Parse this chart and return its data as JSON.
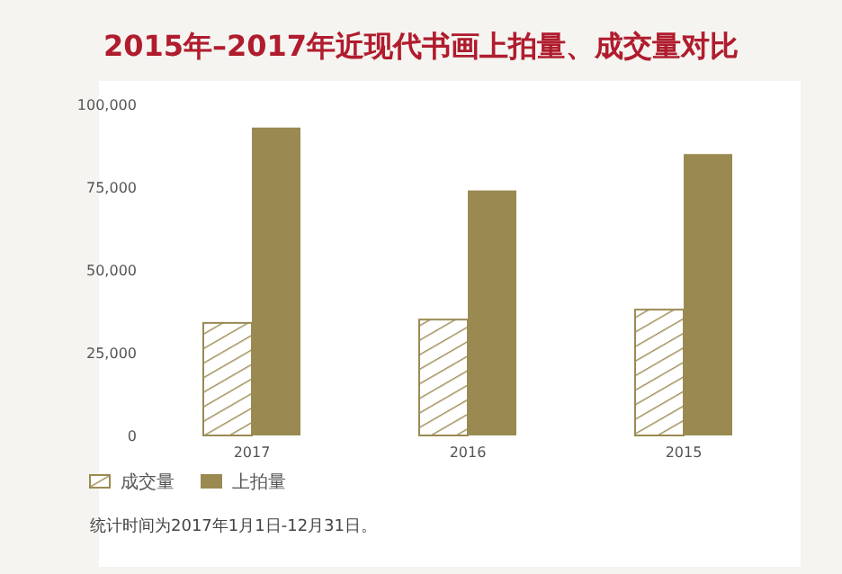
{
  "chart_data": {
    "type": "bar",
    "title": "2015年–2017年近现代书画上拍量、成交量对比",
    "categories": [
      "2017",
      "2016",
      "2015"
    ],
    "series": [
      {
        "name": "成交量",
        "color": "#9a8a52",
        "values": [
          34000,
          35000,
          38000
        ]
      },
      {
        "name": "上拍量",
        "color": "#9a8a52",
        "values": [
          93000,
          74000,
          85000
        ]
      }
    ],
    "ylim": [
      0,
      100000
    ],
    "yticks": [
      {
        "value": 0,
        "label": "0"
      },
      {
        "value": 25000,
        "label": "25,000"
      },
      {
        "value": 50000,
        "label": "50,000"
      },
      {
        "value": 75000,
        "label": "75,000"
      },
      {
        "value": 100000,
        "label": "100,000"
      }
    ],
    "grid": false,
    "legend": "bottom left",
    "annotations": [
      "统计时间为2017年1月1日-12月31日。"
    ]
  }
}
